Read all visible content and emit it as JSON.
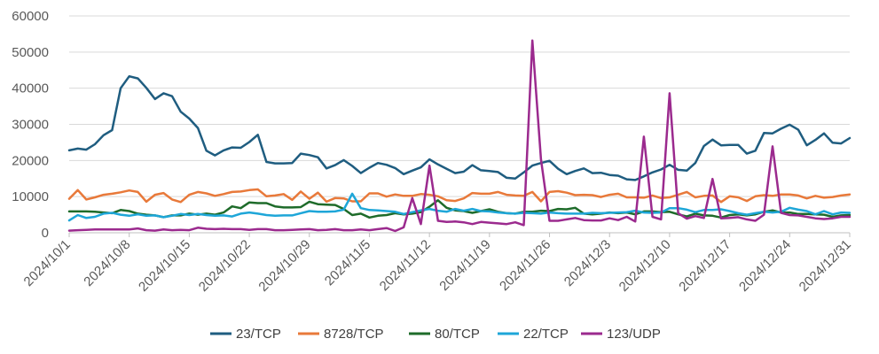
{
  "chart_data": {
    "type": "line",
    "title": "",
    "xlabel": "",
    "ylabel": "",
    "start_date": "2024-10-01",
    "ylim": [
      0,
      60000
    ],
    "y_ticks": [
      "0",
      "10000",
      "20000",
      "30000",
      "40000",
      "50000",
      "60000"
    ],
    "x_tick_labels": [
      "2024/10/1",
      "2024/10/8",
      "2024/10/15",
      "2024/10/22",
      "2024/10/29",
      "2024/11/5",
      "2024/11/12",
      "2024/11/19",
      "2024/11/26",
      "2024/12/3",
      "2024/12/10",
      "2024/12/17",
      "2024/12/24",
      "2024/12/31"
    ],
    "grid": "horizontal",
    "legend_position": "bottom",
    "series": [
      {
        "name": "23/TCP",
        "color": "#1f5d80",
        "values": [
          22800,
          23300,
          23000,
          24500,
          27000,
          28400,
          40000,
          43300,
          42700,
          40100,
          37000,
          38600,
          37800,
          33500,
          31600,
          29000,
          22700,
          21400,
          22800,
          23600,
          23500,
          25100,
          27100,
          19600,
          19200,
          19200,
          19300,
          21900,
          21500,
          20900,
          17800,
          18700,
          20100,
          18500,
          16500,
          18000,
          19300,
          18800,
          17900,
          16200,
          17200,
          18100,
          20300,
          18900,
          17700,
          16500,
          16900,
          18700,
          17300,
          17100,
          16800,
          15200,
          15000,
          16700,
          18600,
          19300,
          19900,
          17700,
          16200,
          17100,
          17800,
          16500,
          16600,
          16000,
          15800,
          14800,
          14600,
          15600,
          16700,
          17500,
          18800,
          17400,
          17200,
          19300,
          24000,
          25800,
          24200,
          24300,
          24300,
          21900,
          22700,
          27600,
          27500,
          28800,
          29900,
          28500,
          24200,
          25700,
          27500,
          24900,
          24700,
          26200
        ]
      },
      {
        "name": "8728/TCP",
        "color": "#e8793a",
        "values": [
          9400,
          11800,
          9200,
          9800,
          10500,
          10800,
          11200,
          11700,
          11300,
          8600,
          10500,
          11000,
          9200,
          8500,
          10500,
          11300,
          10900,
          10200,
          10700,
          11300,
          11400,
          11800,
          12000,
          10100,
          10300,
          10700,
          9100,
          11400,
          9400,
          11100,
          8600,
          9600,
          9500,
          8700,
          8700,
          10900,
          10900,
          10000,
          10600,
          10200,
          10200,
          10700,
          10500,
          10100,
          9000,
          8800,
          9500,
          11000,
          10800,
          10800,
          11300,
          10500,
          10300,
          10200,
          11300,
          8700,
          11300,
          11500,
          11100,
          10400,
          10500,
          10400,
          9900,
          10500,
          10800,
          9800,
          9800,
          9700,
          10300,
          9600,
          9800,
          10500,
          11300,
          9800,
          10200,
          10300,
          8500,
          10100,
          9800,
          8800,
          10100,
          10400,
          10200,
          10600,
          10600,
          10300,
          9500,
          10200,
          9700,
          9900,
          10300,
          10600
        ]
      },
      {
        "name": "80/TCP",
        "color": "#1e6b2a",
        "values": [
          5900,
          5900,
          5900,
          5800,
          5600,
          5400,
          6300,
          6000,
          5300,
          5000,
          4800,
          4300,
          4800,
          4800,
          5300,
          5000,
          5300,
          5000,
          5600,
          7300,
          6800,
          8400,
          8200,
          8200,
          7300,
          7000,
          7000,
          7100,
          8600,
          7900,
          7800,
          7700,
          6600,
          4900,
          5300,
          4200,
          4700,
          4900,
          5400,
          5100,
          5300,
          5700,
          7200,
          9000,
          6900,
          6200,
          6000,
          5500,
          6000,
          6500,
          5800,
          5400,
          5300,
          5800,
          5800,
          6100,
          6000,
          6600,
          6500,
          6900,
          5300,
          5100,
          5300,
          5600,
          5400,
          5600,
          5100,
          5900,
          5900,
          5700,
          5800,
          5100,
          4500,
          5300,
          4800,
          4700,
          4200,
          4900,
          5100,
          4800,
          5100,
          5800,
          6200,
          5600,
          5600,
          5200,
          5200,
          5100,
          5000,
          4400,
          4800,
          4900
        ]
      },
      {
        "name": "22/TCP",
        "color": "#1ea6d8",
        "values": [
          3400,
          4900,
          4100,
          4400,
          5300,
          5500,
          5000,
          4700,
          5100,
          4700,
          4800,
          4300,
          4700,
          5200,
          4900,
          5200,
          4900,
          4700,
          4800,
          4500,
          5300,
          5600,
          5300,
          4900,
          4700,
          4800,
          4800,
          5400,
          6000,
          5800,
          5800,
          5900,
          6400,
          10800,
          6800,
          6300,
          6200,
          6000,
          5800,
          5200,
          5700,
          6200,
          6600,
          6100,
          5800,
          6600,
          6100,
          6600,
          6000,
          5900,
          5600,
          5400,
          5300,
          5500,
          5400,
          5300,
          5600,
          5400,
          5300,
          5300,
          5300,
          5500,
          5400,
          5500,
          5600,
          5700,
          6100,
          5600,
          5500,
          5600,
          6800,
          6800,
          6400,
          5700,
          6300,
          6300,
          6500,
          6000,
          5400,
          5000,
          5400,
          5800,
          5600,
          5800,
          6900,
          6400,
          6000,
          5100,
          6000,
          5100,
          5600,
          5500
        ]
      },
      {
        "name": "123/UDP",
        "color": "#9b2a8e",
        "values": [
          600,
          700,
          800,
          900,
          900,
          900,
          900,
          900,
          1200,
          700,
          600,
          900,
          700,
          800,
          700,
          1400,
          1100,
          1000,
          1100,
          1000,
          1000,
          800,
          1000,
          1000,
          700,
          700,
          800,
          900,
          1000,
          700,
          800,
          1000,
          700,
          700,
          900,
          700,
          1000,
          1300,
          500,
          1500,
          9600,
          2400,
          18600,
          3300,
          3000,
          3100,
          2900,
          2400,
          3000,
          2800,
          2600,
          2400,
          2900,
          2100,
          53200,
          20300,
          3300,
          3300,
          3700,
          4100,
          3500,
          3400,
          3400,
          4000,
          3500,
          4400,
          3100,
          26600,
          4400,
          3700,
          38600,
          5400,
          3900,
          4600,
          4100,
          14900,
          4000,
          4100,
          4300,
          3700,
          3300,
          5000,
          23900,
          5500,
          4900,
          4800,
          4400,
          4000,
          3800,
          4000,
          4400,
          4400
        ]
      }
    ]
  }
}
